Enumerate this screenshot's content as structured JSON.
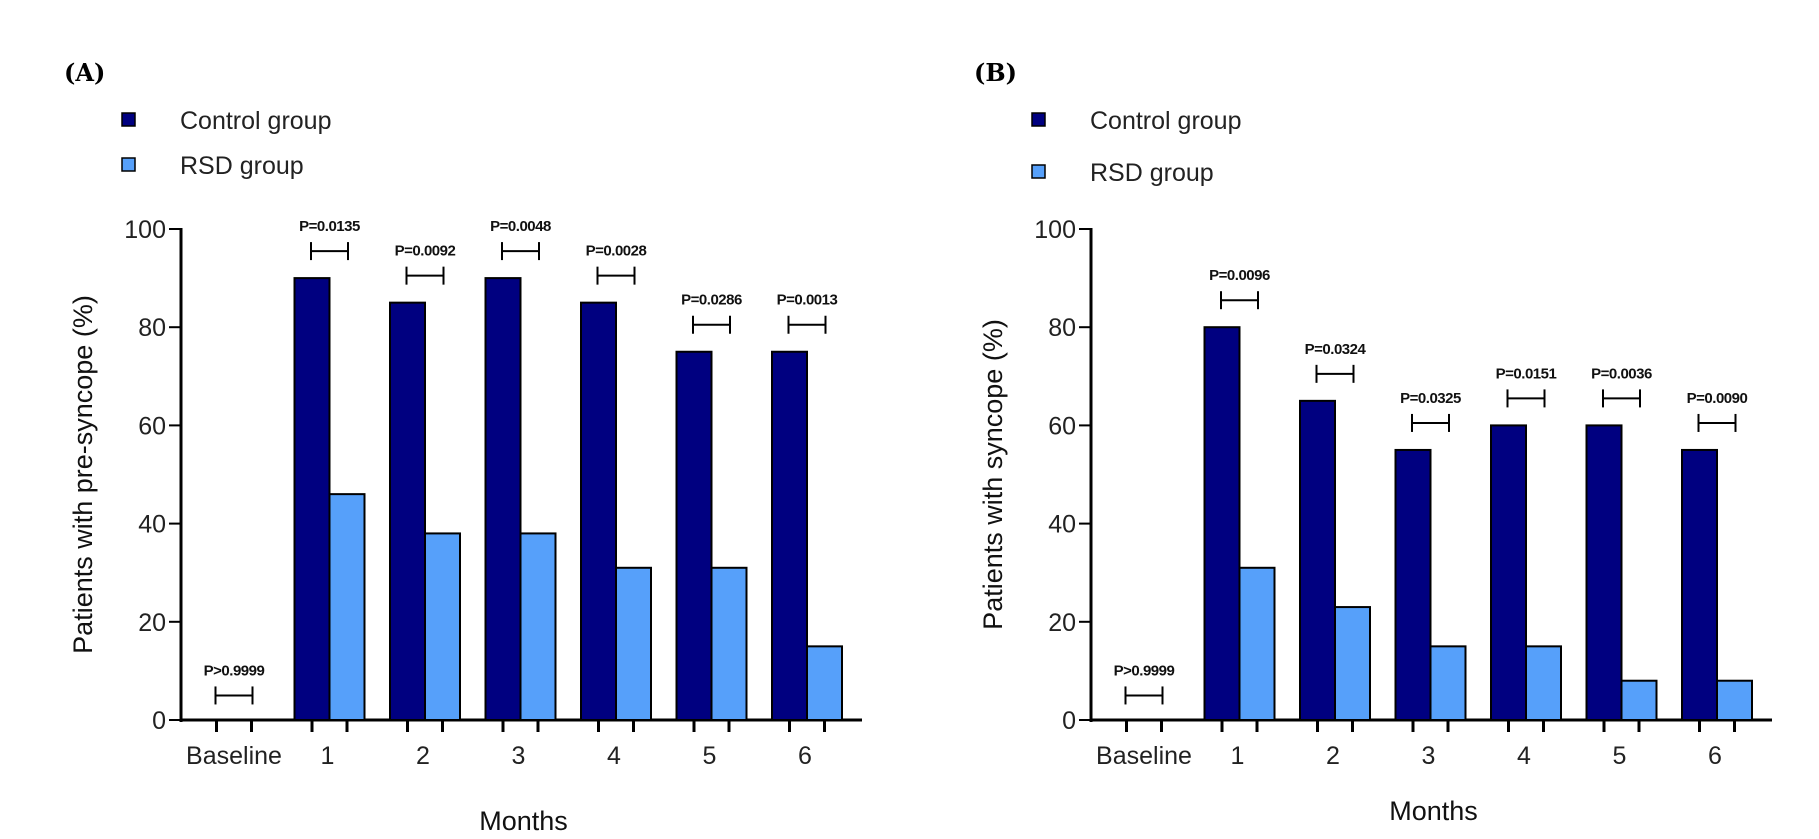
{
  "colors": {
    "control": "#000080",
    "rsd": "#56A0FA"
  },
  "chart_data": [
    {
      "type": "bar",
      "panel_label": "(A)",
      "categories": [
        "Baseline",
        "1",
        "2",
        "3",
        "4",
        "5",
        "6"
      ],
      "xlabel": "Months",
      "ylabel": "Patients with pre-syncope (%)",
      "ylim": [
        0,
        100
      ],
      "yticks": [
        "0",
        "20",
        "40",
        "60",
        "80",
        "100"
      ],
      "legend": "top-left",
      "series": [
        {
          "name": "Control group",
          "values": [
            0,
            90,
            85,
            90,
            85,
            75,
            75
          ]
        },
        {
          "name": "RSD group",
          "values": [
            0,
            46,
            38,
            38,
            31,
            31,
            15
          ]
        }
      ],
      "p_values": [
        "P>0.9999",
        "P=0.0135",
        "P=0.0092",
        "P=0.0048",
        "P=0.0028",
        "P=0.0286",
        "P=0.0013"
      ]
    },
    {
      "type": "bar",
      "panel_label": "(B)",
      "categories": [
        "Baseline",
        "1",
        "2",
        "3",
        "4",
        "5",
        "6"
      ],
      "xlabel": "Months",
      "ylabel": "Patients with syncope (%)",
      "ylim": [
        0,
        100
      ],
      "yticks": [
        "0",
        "20",
        "40",
        "60",
        "80",
        "100"
      ],
      "legend": "top-left",
      "series": [
        {
          "name": "Control group",
          "values": [
            0,
            80,
            65,
            55,
            60,
            60,
            55
          ]
        },
        {
          "name": "RSD group",
          "values": [
            0,
            31,
            23,
            15,
            15,
            8,
            8
          ]
        }
      ],
      "p_values": [
        "P>0.9999",
        "P=0.0096",
        "P=0.0324",
        "P=0.0325",
        "P=0.0151",
        "P=0.0036",
        "P=0.0090"
      ]
    }
  ]
}
